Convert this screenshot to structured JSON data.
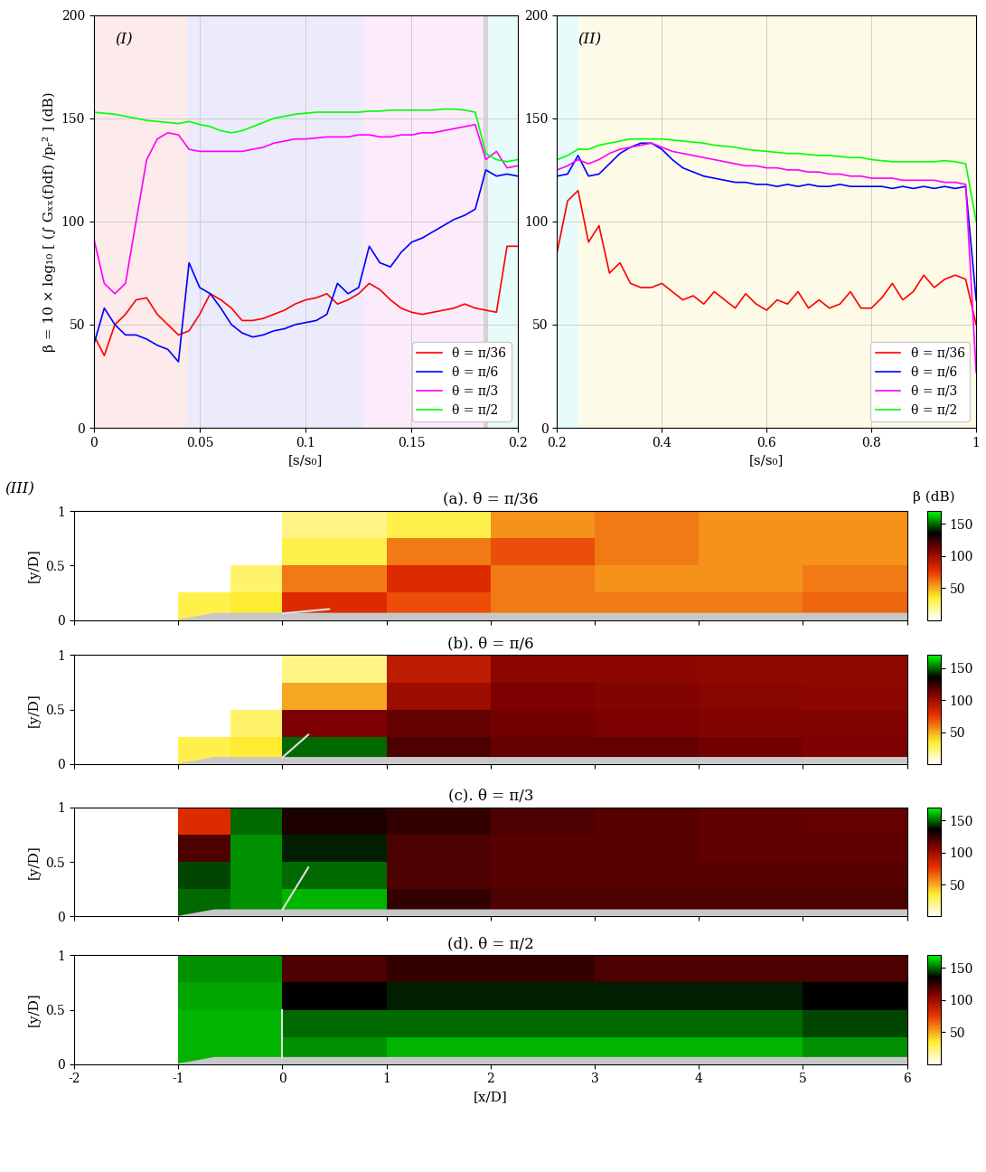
{
  "chart_data": [
    {
      "type": "line",
      "panel_label": "(I)",
      "y_label": "β = 10 × log₁₀ [ (∫ Gₓₓ(f)df) /pᵣ² ] (dB)",
      "x_label": "[s/s₀]",
      "xlim": [
        0,
        0.2
      ],
      "xticks": [
        0,
        0.05,
        0.1,
        0.15,
        0.2
      ],
      "ylim": [
        0,
        200
      ],
      "yticks": [
        0,
        50,
        100,
        150,
        200
      ],
      "grid": true,
      "legend": "lower right",
      "bands": [
        {
          "from": 0,
          "to": 0.044,
          "color": "#fdeaea"
        },
        {
          "from": 0.044,
          "to": 0.127,
          "color": "#ebebfb"
        },
        {
          "from": 0.127,
          "to": 0.184,
          "color": "#fbebfb"
        },
        {
          "from": 0.184,
          "to": 0.186,
          "color": "#d4d4d4"
        },
        {
          "from": 0.186,
          "to": 0.2,
          "color": "#e8fbfb"
        }
      ],
      "x": [
        0,
        0.005,
        0.01,
        0.015,
        0.02,
        0.025,
        0.03,
        0.035,
        0.04,
        0.045,
        0.05,
        0.055,
        0.06,
        0.065,
        0.07,
        0.075,
        0.08,
        0.085,
        0.09,
        0.095,
        0.1,
        0.105,
        0.11,
        0.115,
        0.12,
        0.125,
        0.13,
        0.135,
        0.14,
        0.145,
        0.15,
        0.155,
        0.16,
        0.165,
        0.17,
        0.175,
        0.18,
        0.185,
        0.19,
        0.195,
        0.2
      ],
      "series": [
        {
          "name": "θ = π/36",
          "color": "#ff0000",
          "values": [
            45,
            35,
            50,
            55,
            62,
            63,
            55,
            50,
            45,
            47,
            55,
            65,
            62,
            58,
            52,
            52,
            53,
            55,
            57,
            60,
            62,
            63,
            65,
            60,
            62,
            65,
            70,
            67,
            62,
            58,
            56,
            55,
            56,
            57,
            58,
            60,
            58,
            57,
            56,
            88,
            88
          ]
        },
        {
          "name": "θ = π/6",
          "color": "#0000ff",
          "values": [
            40,
            58,
            50,
            45,
            45,
            43,
            40,
            38,
            32,
            80,
            68,
            65,
            58,
            50,
            46,
            44,
            45,
            47,
            48,
            50,
            51,
            52,
            55,
            70,
            65,
            68,
            88,
            80,
            78,
            85,
            90,
            92,
            95,
            98,
            101,
            103,
            106,
            125,
            122,
            123,
            122
          ]
        },
        {
          "name": "θ = π/3",
          "color": "#ff00ff",
          "values": [
            92,
            70,
            65,
            70,
            100,
            130,
            140,
            143,
            142,
            135,
            134,
            134,
            134,
            134,
            134,
            135,
            136,
            138,
            139,
            140,
            140,
            140.5,
            141,
            141,
            141,
            142,
            142,
            141,
            141,
            142,
            142,
            143,
            143,
            144,
            145,
            146,
            147,
            130,
            134,
            126,
            127
          ]
        },
        {
          "name": "θ = π/2",
          "color": "#00ff00",
          "values": [
            153,
            152.5,
            152,
            151,
            150,
            149,
            148.5,
            148,
            147.5,
            148.5,
            147,
            146,
            144,
            143,
            144,
            146,
            148,
            150,
            151,
            152,
            152.5,
            153,
            153,
            153,
            153,
            153,
            153.5,
            153.5,
            154,
            154,
            154,
            154,
            154,
            154.5,
            154.5,
            154,
            153,
            133,
            130,
            129,
            130
          ]
        }
      ]
    },
    {
      "type": "line",
      "panel_label": "(II)",
      "x_label": "[s/s₀]",
      "xlim": [
        0.2,
        1
      ],
      "xticks": [
        0.2,
        0.4,
        0.6,
        0.8,
        1
      ],
      "ylim": [
        0,
        200
      ],
      "yticks": [
        0,
        50,
        100,
        150,
        200
      ],
      "grid": true,
      "legend": "lower right",
      "bands": [
        {
          "from": 0.2,
          "to": 0.24,
          "color": "#e8fbfb"
        },
        {
          "from": 0.24,
          "to": 1,
          "color": "#fdfbe8"
        }
      ],
      "x": [
        0.2,
        0.22,
        0.24,
        0.26,
        0.28,
        0.3,
        0.32,
        0.34,
        0.36,
        0.38,
        0.4,
        0.42,
        0.44,
        0.46,
        0.48,
        0.5,
        0.52,
        0.54,
        0.56,
        0.58,
        0.6,
        0.62,
        0.64,
        0.66,
        0.68,
        0.7,
        0.72,
        0.74,
        0.76,
        0.78,
        0.8,
        0.82,
        0.84,
        0.86,
        0.88,
        0.9,
        0.92,
        0.94,
        0.96,
        0.98,
        1.0
      ],
      "series": [
        {
          "name": "θ = π/36",
          "color": "#ff0000",
          "values": [
            85,
            110,
            115,
            90,
            98,
            75,
            80,
            70,
            68,
            68,
            70,
            66,
            62,
            64,
            60,
            66,
            62,
            58,
            65,
            60,
            57,
            62,
            60,
            66,
            58,
            62,
            58,
            60,
            66,
            58,
            58,
            63,
            70,
            62,
            66,
            74,
            68,
            72,
            74,
            72,
            50
          ]
        },
        {
          "name": "θ = π/6",
          "color": "#0000ff",
          "values": [
            122,
            123,
            132,
            122,
            123,
            128,
            133,
            136,
            138,
            138,
            135,
            130,
            126,
            124,
            122,
            121,
            120,
            119,
            119,
            118,
            118,
            117,
            118,
            117,
            118,
            117,
            117,
            118,
            117,
            117,
            117,
            117,
            116,
            117,
            116,
            117,
            116,
            117,
            116,
            117,
            62
          ]
        },
        {
          "name": "θ = π/3",
          "color": "#ff00ff",
          "values": [
            125,
            127,
            130,
            128,
            130,
            133,
            135,
            136,
            137,
            138,
            136,
            134,
            133,
            132,
            131,
            130,
            129,
            128,
            127,
            127,
            126,
            126,
            125,
            125,
            124,
            124,
            123,
            123,
            122,
            122,
            121,
            121,
            121,
            120,
            120,
            120,
            120,
            119,
            119,
            118,
            27
          ]
        },
        {
          "name": "θ = π/2",
          "color": "#00ff00",
          "values": [
            130,
            132,
            135,
            135,
            137,
            138,
            139,
            140,
            140,
            140,
            140,
            139.5,
            139,
            138.5,
            138,
            137,
            136.5,
            136,
            135,
            134.5,
            134,
            133.5,
            133,
            133,
            132.5,
            132,
            132,
            131.5,
            131,
            131,
            130,
            129.5,
            129,
            129,
            129,
            129,
            129,
            129.5,
            129,
            128,
            100
          ]
        }
      ]
    },
    {
      "type": "heatmap",
      "title": "(a). θ = π/36",
      "panel_label": "(III)",
      "y_label": "[y/D]",
      "tick_labels": "y",
      "xlim": [
        -2,
        6
      ],
      "xticks": [
        -2,
        -1,
        0,
        1,
        2,
        3,
        4,
        5,
        6
      ],
      "ylim": [
        0,
        1
      ],
      "yticks": [
        0,
        0.5,
        1
      ],
      "x_edges": [
        -2,
        -1.5,
        -1,
        -0.5,
        0,
        1,
        2,
        3,
        4,
        5,
        6
      ],
      "y_edges": [
        0,
        0.25,
        0.5,
        0.75,
        1
      ],
      "cells": [
        [
          null,
          null,
          30,
          35,
          80,
          70,
          60,
          60,
          60,
          65
        ],
        [
          null,
          null,
          null,
          25,
          60,
          80,
          60,
          55,
          55,
          60
        ],
        [
          null,
          null,
          null,
          null,
          30,
          60,
          70,
          60,
          55,
          55
        ],
        [
          null,
          null,
          null,
          null,
          20,
          30,
          55,
          60,
          55,
          55
        ]
      ],
      "body": {
        "x": [
          -1,
          -0.65,
          6,
          6
        ],
        "y": [
          0,
          0.06,
          0.06,
          0
        ]
      },
      "flap": {
        "x": [
          0,
          0.45
        ],
        "y": [
          0.06,
          0.1
        ]
      },
      "colorbar": {
        "label": "β (dB)",
        "clim": [
          0,
          170
        ],
        "ticks": [
          50,
          100,
          150
        ]
      }
    },
    {
      "type": "heatmap",
      "title": "(b). θ = π/6",
      "y_label": "[y/D]",
      "tick_labels": "y",
      "xlim": [
        -2,
        6
      ],
      "xticks": [
        -2,
        -1,
        0,
        1,
        2,
        3,
        4,
        5,
        6
      ],
      "ylim": [
        0,
        1
      ],
      "yticks": [
        0,
        0.5,
        1
      ],
      "x_edges": [
        -2,
        -1.5,
        -1,
        -0.5,
        0,
        1,
        2,
        3,
        4,
        5,
        6
      ],
      "y_edges": [
        0,
        0.25,
        0.5,
        0.75,
        1
      ],
      "cells": [
        [
          null,
          null,
          30,
          35,
          150,
          120,
          115,
          115,
          112,
          110
        ],
        [
          null,
          null,
          null,
          25,
          110,
          115,
          112,
          110,
          108,
          108
        ],
        [
          null,
          null,
          null,
          null,
          50,
          100,
          110,
          108,
          106,
          105
        ],
        [
          null,
          null,
          null,
          null,
          20,
          90,
          105,
          105,
          104,
          104
        ]
      ],
      "body": {
        "x": [
          -1,
          -0.65,
          6,
          6
        ],
        "y": [
          0,
          0.06,
          0.06,
          0
        ]
      },
      "flap": {
        "x": [
          0,
          0.25
        ],
        "y": [
          0.06,
          0.27
        ]
      },
      "colorbar": {
        "clim": [
          0,
          170
        ],
        "ticks": [
          50,
          100,
          150
        ]
      }
    },
    {
      "type": "heatmap",
      "title": "(c). θ = π/3",
      "y_label": "[y/D]",
      "tick_labels": "y",
      "xlim": [
        -2,
        6
      ],
      "xticks": [
        -2,
        -1,
        0,
        1,
        2,
        3,
        4,
        5,
        6
      ],
      "ylim": [
        0,
        1
      ],
      "yticks": [
        0,
        0.5,
        1
      ],
      "x_edges": [
        -2,
        -1.5,
        -1,
        -0.5,
        0,
        1,
        2,
        3,
        4,
        5,
        6
      ],
      "y_edges": [
        0,
        0.25,
        0.5,
        0.75,
        1
      ],
      "cells": [
        [
          null,
          null,
          150,
          155,
          160,
          125,
          120,
          120,
          120,
          120
        ],
        [
          null,
          null,
          145,
          155,
          150,
          120,
          118,
          118,
          118,
          118
        ],
        [
          null,
          null,
          120,
          155,
          140,
          120,
          118,
          118,
          116,
          116
        ],
        [
          null,
          null,
          80,
          150,
          130,
          125,
          120,
          118,
          116,
          115
        ]
      ],
      "body": {
        "x": [
          -1,
          -0.65,
          6,
          6
        ],
        "y": [
          0,
          0.06,
          0.06,
          0
        ]
      },
      "flap": {
        "x": [
          0,
          0.25
        ],
        "y": [
          0.06,
          0.45
        ]
      },
      "colorbar": {
        "clim": [
          0,
          170
        ],
        "ticks": [
          50,
          100,
          150
        ]
      }
    },
    {
      "type": "heatmap",
      "title": "(d). θ = π/2",
      "y_label": "[y/D]",
      "x_label": "[x/D]",
      "xlim": [
        -2,
        6
      ],
      "xticks": [
        -2,
        -1,
        0,
        1,
        2,
        3,
        4,
        5,
        6
      ],
      "ylim": [
        0,
        1
      ],
      "yticks": [
        0,
        0.5,
        1
      ],
      "x_edges": [
        -2,
        -1.5,
        -1,
        -0.5,
        0,
        1,
        2,
        3,
        4,
        5,
        6
      ],
      "y_edges": [
        0,
        0.25,
        0.5,
        0.75,
        1
      ],
      "cells": [
        [
          null,
          null,
          160,
          160,
          155,
          160,
          160,
          160,
          160,
          155
        ],
        [
          null,
          null,
          160,
          160,
          150,
          150,
          150,
          150,
          150,
          145
        ],
        [
          null,
          null,
          158,
          158,
          135,
          140,
          140,
          140,
          140,
          135
        ],
        [
          null,
          null,
          155,
          155,
          120,
          125,
          125,
          120,
          120,
          120
        ]
      ],
      "body": {
        "x": [
          -1,
          -0.65,
          6,
          6
        ],
        "y": [
          0,
          0.06,
          0.06,
          0
        ]
      },
      "flap": {
        "x": [
          0,
          0
        ],
        "y": [
          0.06,
          0.5
        ]
      },
      "colorbar": {
        "clim": [
          0,
          170
        ],
        "ticks": [
          50,
          100,
          150
        ]
      }
    }
  ]
}
